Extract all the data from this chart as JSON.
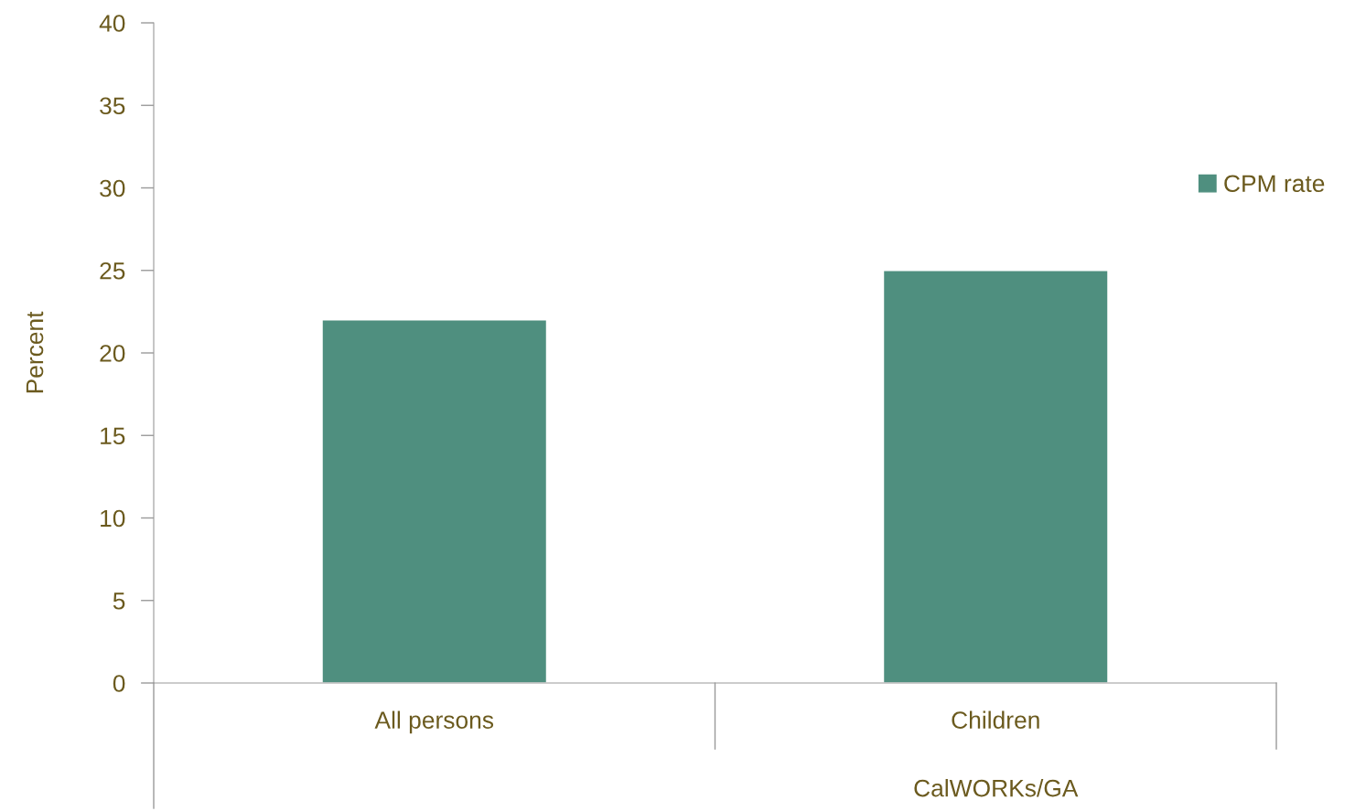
{
  "chart_data": {
    "type": "bar",
    "ylabel": "Percent",
    "categories": [
      "All persons",
      "Children"
    ],
    "series": [
      {
        "name": "CPM rate",
        "color": "#4f8f7f",
        "values": [
          22.0,
          25.0
        ]
      }
    ],
    "ylim": [
      0,
      40
    ],
    "yticks": [
      0,
      5,
      10,
      15,
      20,
      25,
      30,
      35,
      40
    ],
    "annotations": [
      "CalWORKs/GA"
    ],
    "grid": false,
    "legend": "right"
  }
}
